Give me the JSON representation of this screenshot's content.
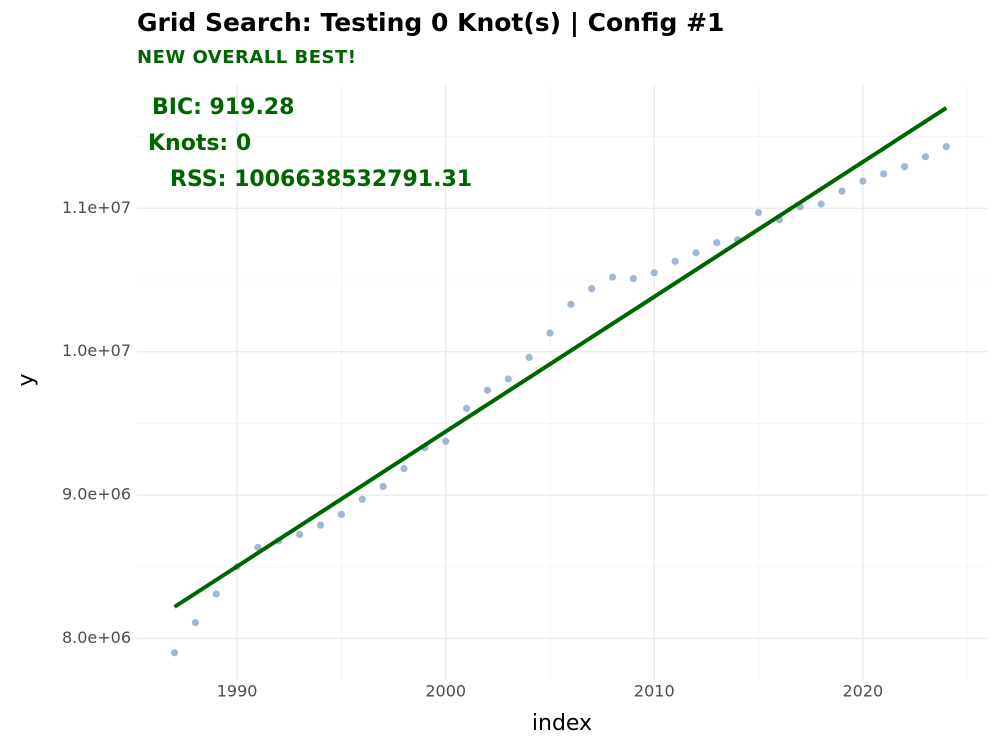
{
  "chart_data": {
    "type": "scatter",
    "title": "Grid Search: Testing 0 Knot(s) | Config #1",
    "subtitle": "NEW OVERALL BEST!",
    "annotations": [
      "BIC: 919.28",
      "Knots: 0",
      "RSS: 1006638532791.31"
    ],
    "x_label": "index",
    "y_label": "y",
    "xlim": [
      1985.2,
      2026
    ],
    "ylim": [
      7710000,
      11860000
    ],
    "xticks": [
      1990,
      2000,
      2010,
      2020
    ],
    "yticks": [
      {
        "value": 8000000,
        "label": "8.0e+06"
      },
      {
        "value": 9000000,
        "label": "9.0e+06"
      },
      {
        "value": 10000000,
        "label": "1.0e+07"
      },
      {
        "value": 11000000,
        "label": "1.1e+07"
      }
    ],
    "x_minor_grid": [
      1995,
      2005,
      2015,
      2025
    ],
    "y_minor_grid": [
      8500000,
      9500000,
      10500000,
      11500000
    ],
    "grid": true,
    "series": [
      {
        "type": "scatter",
        "color": "#8eabcd",
        "x": [
          1987,
          1988,
          1989,
          1990,
          1991,
          1992,
          1993,
          1994,
          1995,
          1996,
          1997,
          1998,
          1999,
          2000,
          2001,
          2002,
          2003,
          2004,
          2005,
          2006,
          2007,
          2008,
          2009,
          2010,
          2011,
          2012,
          2013,
          2014,
          2015,
          2016,
          2017,
          2018,
          2019,
          2020,
          2021,
          2022,
          2023,
          2024
        ],
        "values": [
          7900000,
          8110000,
          8310000,
          8500000,
          8635000,
          8680000,
          8725000,
          8790000,
          8865000,
          8970000,
          9060000,
          9185000,
          9330000,
          9375000,
          9605000,
          9730000,
          9810000,
          9960000,
          10130000,
          10330000,
          10440000,
          10520000,
          10510000,
          10550000,
          10630000,
          10690000,
          10760000,
          10780000,
          10970000,
          10920000,
          11010000,
          11030000,
          11120000,
          11190000,
          11240000,
          11290000,
          11360000,
          11430000
        ]
      },
      {
        "type": "line",
        "color": "#006400",
        "x": [
          1987,
          2024
        ],
        "values": [
          8220000,
          11700000
        ]
      }
    ]
  }
}
